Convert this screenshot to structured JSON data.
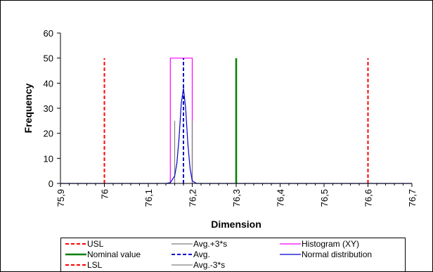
{
  "chart_data": {
    "type": "line",
    "title": "",
    "xlabel": "Dimension",
    "ylabel": "Frequency",
    "xlim": [
      75.9,
      76.7
    ],
    "ylim": [
      0,
      60
    ],
    "x_ticks": [
      75.9,
      76.0,
      76.1,
      76.2,
      76.3,
      76.4,
      76.5,
      76.6,
      76.7
    ],
    "x_tick_labels": [
      "75,9",
      "76",
      "76,1",
      "76,2",
      "76,3",
      "76,4",
      "76,5",
      "76,6",
      "76,7"
    ],
    "y_ticks": [
      0,
      10,
      20,
      30,
      40,
      50,
      60
    ],
    "y_tick_labels": [
      "0",
      "10",
      "20",
      "30",
      "40",
      "50",
      "60"
    ],
    "grid": false,
    "legend_position": "bottom",
    "series": [
      {
        "name": "USL",
        "style": "dashed",
        "color": "#ff0000",
        "x": [
          76.0,
          76.0
        ],
        "y": [
          0,
          50
        ]
      },
      {
        "name": "Nominal value",
        "style": "solid",
        "color": "#008000",
        "x": [
          76.3,
          76.3
        ],
        "y": [
          0,
          50
        ]
      },
      {
        "name": "LSL",
        "style": "dashed",
        "color": "#ff0000",
        "x": [
          76.6,
          76.6
        ],
        "y": [
          0,
          50
        ]
      },
      {
        "name": "Avg.+3*s",
        "style": "solid",
        "color": "#808080",
        "x": [
          76.2,
          76.2
        ],
        "y": [
          0,
          25
        ]
      },
      {
        "name": "Avg.",
        "style": "dashed",
        "color": "#0000cc",
        "x": [
          76.18,
          76.18
        ],
        "y": [
          0,
          50
        ]
      },
      {
        "name": "Avg.-3*s",
        "style": "solid",
        "color": "#808080",
        "x": [
          76.16,
          76.16
        ],
        "y": [
          0,
          25
        ]
      },
      {
        "name": "Histogram (XY)",
        "style": "solid",
        "color": "#ff00ff",
        "x": [
          76.15,
          76.15,
          76.2,
          76.2
        ],
        "y": [
          0,
          50,
          50,
          0
        ]
      },
      {
        "name": "Normal distribution",
        "style": "solid",
        "color": "#0000cc",
        "x": [
          75.9,
          76.14,
          76.15,
          76.16,
          76.165,
          76.17,
          76.175,
          76.18,
          76.185,
          76.19,
          76.195,
          76.2,
          76.21,
          76.7
        ],
        "y": [
          0,
          0,
          0.3,
          3,
          8,
          18,
          32,
          38,
          30,
          16,
          6,
          1,
          0,
          0
        ]
      }
    ]
  }
}
